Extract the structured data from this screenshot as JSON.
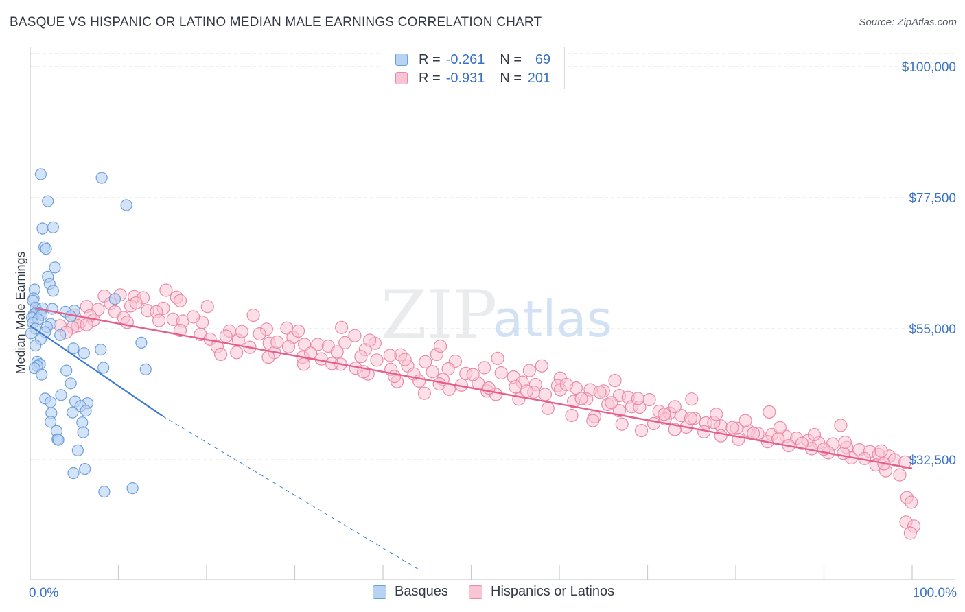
{
  "title": "BASQUE VS HISPANIC OR LATINO MEDIAN MALE EARNINGS CORRELATION CHART",
  "source": "Source: ZipAtlas.com",
  "watermark": {
    "zip": "ZIP",
    "atlas": "atlas"
  },
  "legend_top": {
    "rows": [
      {
        "r_label": "R =",
        "r_value": "-0.261",
        "n_label": "N =",
        "n_value": "69"
      },
      {
        "r_label": "R =",
        "r_value": "-0.931",
        "n_label": "N =",
        "n_value": "201"
      }
    ]
  },
  "legend_bottom": {
    "basques": "Basques",
    "hispanics": "Hispanics or Latinos"
  },
  "colors": {
    "basque_fill": "#b8d2f3",
    "basque_stroke": "#6e9fdb",
    "basque_line": "#3b7bd0",
    "hispanic_fill": "#f9c5d4",
    "hispanic_stroke": "#e98aa8",
    "hispanic_line": "#e45f8c",
    "axis_label": "#3b73c4",
    "grid": "#dfe1e5"
  },
  "chart_data": {
    "type": "scatter",
    "title": "BASQUE VS HISPANIC OR LATINO MEDIAN MALE EARNINGS CORRELATION CHART",
    "xlabel": "",
    "ylabel": "Median Male Earnings",
    "x_tick_labels": [
      "0.0%",
      "100.0%"
    ],
    "y_tick_labels": [
      "$100,000",
      "$77,500",
      "$55,000",
      "$32,500"
    ],
    "y_ticks": [
      100000,
      77500,
      55000,
      32500
    ],
    "xlim": [
      0,
      100
    ],
    "ylim": [
      14000,
      103000
    ],
    "grid": true,
    "series": [
      {
        "name": "Basques",
        "R": -0.261,
        "N": 69,
        "trend": {
          "x": [
            0,
            15
          ],
          "y": [
            55500,
            40000
          ],
          "dashed_to": [
            44,
            13700
          ]
        },
        "points": [
          [
            1.2,
            81.5
          ],
          [
            8.1,
            80.9
          ],
          [
            2.0,
            76.9
          ],
          [
            10.9,
            76.2
          ],
          [
            1.4,
            72.2
          ],
          [
            2.6,
            72.4
          ],
          [
            1.6,
            69.0
          ],
          [
            1.8,
            68.7
          ],
          [
            2.8,
            65.5
          ],
          [
            2.0,
            63.9
          ],
          [
            2.2,
            62.7
          ],
          [
            0.5,
            61.7
          ],
          [
            2.6,
            61.5
          ],
          [
            0.4,
            60.2
          ],
          [
            9.6,
            60.1
          ],
          [
            0.3,
            59.8
          ],
          [
            0.6,
            58.6
          ],
          [
            1.4,
            58.5
          ],
          [
            2.5,
            58.4
          ],
          [
            5.0,
            58.1
          ],
          [
            4.0,
            57.9
          ],
          [
            0.7,
            57.8
          ],
          [
            1.1,
            57.6
          ],
          [
            0.4,
            57.4
          ],
          [
            1.3,
            57.3
          ],
          [
            4.6,
            57.1
          ],
          [
            0.2,
            56.9
          ],
          [
            0.9,
            56.6
          ],
          [
            0.3,
            56.0
          ],
          [
            2.3,
            55.8
          ],
          [
            1.9,
            55.3
          ],
          [
            0.6,
            55.0
          ],
          [
            1.7,
            54.4
          ],
          [
            0.1,
            54.2
          ],
          [
            3.4,
            53.9
          ],
          [
            1.2,
            53.2
          ],
          [
            12.6,
            52.6
          ],
          [
            0.6,
            52.1
          ],
          [
            4.9,
            51.6
          ],
          [
            8.0,
            51.4
          ],
          [
            6.1,
            50.8
          ],
          [
            0.8,
            49.3
          ],
          [
            1.1,
            48.9
          ],
          [
            0.8,
            48.6
          ],
          [
            0.5,
            48.2
          ],
          [
            8.3,
            48.3
          ],
          [
            13.1,
            48.0
          ],
          [
            4.1,
            47.8
          ],
          [
            1.3,
            47.1
          ],
          [
            4.6,
            45.6
          ],
          [
            3.5,
            43.6
          ],
          [
            1.7,
            43.0
          ],
          [
            2.3,
            42.4
          ],
          [
            5.1,
            42.5
          ],
          [
            6.5,
            42.2
          ],
          [
            5.7,
            41.7
          ],
          [
            6.3,
            40.9
          ],
          [
            4.8,
            40.6
          ],
          [
            2.4,
            40.5
          ],
          [
            2.3,
            39.0
          ],
          [
            5.9,
            38.9
          ],
          [
            3.0,
            37.4
          ],
          [
            6.0,
            37.2
          ],
          [
            3.1,
            36.0
          ],
          [
            3.2,
            35.9
          ],
          [
            5.4,
            34.1
          ],
          [
            6.2,
            30.9
          ],
          [
            4.9,
            30.2
          ],
          [
            11.6,
            27.6
          ],
          [
            8.4,
            27.0
          ]
        ]
      },
      {
        "name": "Hispanics or Latinos",
        "R": -0.931,
        "N": 201,
        "trend": {
          "x": [
            0.5,
            100
          ],
          "y": [
            58500,
            31000
          ]
        },
        "points": [
          [
            15.4,
            61.6
          ],
          [
            10.2,
            60.8
          ],
          [
            8.4,
            60.6
          ],
          [
            11.8,
            60.5
          ],
          [
            12.8,
            60.3
          ],
          [
            16.6,
            60.4
          ],
          [
            17.0,
            59.8
          ],
          [
            9.1,
            59.3
          ],
          [
            11.4,
            58.9
          ],
          [
            6.4,
            58.8
          ],
          [
            15.1,
            58.5
          ],
          [
            7.7,
            58.3
          ],
          [
            13.3,
            58.1
          ],
          [
            14.3,
            57.9
          ],
          [
            9.6,
            57.9
          ],
          [
            6.8,
            57.2
          ],
          [
            5.0,
            57.3
          ],
          [
            10.6,
            56.9
          ],
          [
            7.2,
            56.5
          ],
          [
            5.7,
            56.2
          ],
          [
            16.2,
            56.6
          ],
          [
            14.6,
            56.4
          ],
          [
            17.3,
            56.3
          ],
          [
            11.0,
            56.1
          ],
          [
            19.5,
            56.1
          ],
          [
            5.4,
            55.5
          ],
          [
            6.4,
            55.7
          ],
          [
            3.4,
            55.5
          ],
          [
            4.8,
            55.2
          ],
          [
            17.0,
            54.7
          ],
          [
            22.6,
            54.6
          ],
          [
            4.1,
            54.4
          ],
          [
            29.1,
            55.1
          ],
          [
            26.8,
            54.9
          ],
          [
            35.3,
            55.2
          ],
          [
            19.3,
            54.0
          ],
          [
            26.0,
            54.1
          ],
          [
            22.2,
            53.7
          ],
          [
            20.4,
            53.2
          ],
          [
            23.6,
            53.0
          ],
          [
            29.8,
            53.5
          ],
          [
            35.7,
            52.6
          ],
          [
            27.1,
            52.5
          ],
          [
            32.6,
            52.3
          ],
          [
            36.8,
            53.8
          ],
          [
            29.3,
            51.9
          ],
          [
            39.1,
            52.5
          ],
          [
            31.1,
            52.3
          ],
          [
            33.8,
            52.0
          ],
          [
            21.2,
            51.9
          ],
          [
            24.9,
            51.8
          ],
          [
            38.0,
            51.4
          ],
          [
            34.8,
            51.0
          ],
          [
            27.7,
            50.9
          ],
          [
            42.0,
            50.5
          ],
          [
            21.6,
            50.6
          ],
          [
            23.4,
            50.9
          ],
          [
            30.9,
            50.1
          ],
          [
            37.5,
            50.2
          ],
          [
            40.8,
            50.4
          ],
          [
            46.1,
            50.6
          ],
          [
            27.0,
            50.1
          ],
          [
            33.0,
            49.8
          ],
          [
            39.3,
            49.6
          ],
          [
            44.8,
            49.3
          ],
          [
            48.2,
            49.4
          ],
          [
            35.2,
            48.9
          ],
          [
            31.0,
            48.9
          ],
          [
            36.9,
            48.2
          ],
          [
            42.8,
            48.6
          ],
          [
            51.5,
            48.3
          ],
          [
            47.4,
            48.1
          ],
          [
            40.9,
            48.0
          ],
          [
            45.6,
            47.6
          ],
          [
            49.4,
            47.3
          ],
          [
            38.3,
            47.2
          ],
          [
            43.5,
            47.2
          ],
          [
            53.4,
            47.4
          ],
          [
            54.8,
            46.7
          ],
          [
            60.1,
            46.5
          ],
          [
            46.8,
            46.3
          ],
          [
            41.6,
            45.9
          ],
          [
            55.8,
            45.8
          ],
          [
            50.8,
            45.6
          ],
          [
            46.4,
            45.5
          ],
          [
            57.3,
            45.4
          ],
          [
            59.8,
            45.2
          ],
          [
            55.0,
            45.0
          ],
          [
            61.9,
            44.8
          ],
          [
            47.5,
            44.6
          ],
          [
            60.1,
            44.5
          ],
          [
            63.5,
            44.5
          ],
          [
            65.0,
            44.3
          ],
          [
            51.8,
            44.3
          ],
          [
            57.1,
            44.1
          ],
          [
            44.7,
            43.9
          ],
          [
            52.8,
            43.7
          ],
          [
            66.8,
            43.5
          ],
          [
            67.8,
            43.2
          ],
          [
            55.4,
            42.9
          ],
          [
            63.1,
            42.9
          ],
          [
            70.2,
            42.8
          ],
          [
            61.6,
            42.5
          ],
          [
            65.5,
            42.0
          ],
          [
            68.2,
            41.6
          ],
          [
            58.7,
            41.3
          ],
          [
            66.8,
            40.9
          ],
          [
            71.3,
            40.8
          ],
          [
            72.5,
            40.5
          ],
          [
            73.8,
            40.1
          ],
          [
            64.0,
            39.9
          ],
          [
            61.4,
            40.1
          ],
          [
            75.3,
            39.6
          ],
          [
            72.0,
            39.5
          ],
          [
            63.8,
            39.2
          ],
          [
            76.6,
            38.8
          ],
          [
            70.7,
            38.7
          ],
          [
            67.1,
            38.6
          ],
          [
            78.3,
            38.3
          ],
          [
            74.4,
            38.1
          ],
          [
            80.1,
            37.9
          ],
          [
            73.1,
            37.7
          ],
          [
            69.3,
            37.5
          ],
          [
            81.5,
            37.4
          ],
          [
            76.4,
            37.3
          ],
          [
            82.5,
            37.0
          ],
          [
            84.1,
            36.8
          ],
          [
            78.3,
            36.6
          ],
          [
            85.7,
            36.5
          ],
          [
            86.9,
            36.2
          ],
          [
            80.3,
            36.0
          ],
          [
            88.2,
            35.8
          ],
          [
            83.6,
            35.6
          ],
          [
            89.4,
            35.4
          ],
          [
            91.0,
            35.2
          ],
          [
            86.0,
            34.9
          ],
          [
            92.6,
            34.6
          ],
          [
            88.6,
            34.4
          ],
          [
            94.0,
            34.2
          ],
          [
            95.2,
            33.9
          ],
          [
            90.5,
            33.7
          ],
          [
            96.2,
            33.4
          ],
          [
            97.4,
            33.1
          ],
          [
            93.1,
            32.8
          ],
          [
            98.0,
            32.5
          ],
          [
            99.2,
            32.1
          ],
          [
            95.9,
            31.6
          ],
          [
            97.0,
            30.6
          ],
          [
            98.6,
            29.9
          ],
          [
            99.4,
            26.0
          ],
          [
            99.9,
            25.2
          ],
          [
            99.3,
            21.8
          ],
          [
            100.2,
            21.1
          ],
          [
            99.8,
            19.9
          ],
          [
            12.0,
            59.4
          ],
          [
            18.5,
            57.0
          ],
          [
            24.0,
            54.5
          ],
          [
            28.0,
            52.7
          ],
          [
            31.8,
            50.8
          ],
          [
            34.2,
            49.0
          ],
          [
            37.8,
            47.6
          ],
          [
            41.3,
            46.8
          ],
          [
            44.1,
            46.0
          ],
          [
            48.9,
            45.3
          ],
          [
            52.0,
            44.8
          ],
          [
            56.3,
            44.3
          ],
          [
            58.4,
            43.7
          ],
          [
            62.5,
            43.0
          ],
          [
            65.9,
            42.3
          ],
          [
            69.1,
            41.5
          ],
          [
            71.9,
            40.3
          ],
          [
            74.9,
            39.6
          ],
          [
            77.5,
            38.9
          ],
          [
            79.6,
            38.0
          ],
          [
            82.0,
            37.0
          ],
          [
            84.8,
            36.1
          ],
          [
            87.5,
            35.3
          ],
          [
            90.0,
            34.3
          ],
          [
            92.2,
            33.6
          ],
          [
            94.6,
            32.7
          ],
          [
            96.8,
            31.8
          ],
          [
            56.6,
            47.8
          ],
          [
            42.5,
            49.7
          ],
          [
            38.5,
            53.0
          ],
          [
            30.4,
            54.6
          ],
          [
            25.3,
            57.3
          ],
          [
            20.1,
            58.8
          ],
          [
            50.2,
            47.1
          ],
          [
            60.8,
            45.4
          ],
          [
            64.6,
            44.1
          ],
          [
            68.9,
            43.0
          ],
          [
            73.1,
            41.6
          ],
          [
            77.8,
            40.3
          ],
          [
            81.1,
            39.2
          ],
          [
            85.0,
            38.0
          ],
          [
            88.9,
            36.8
          ],
          [
            92.4,
            35.5
          ],
          [
            96.5,
            34.0
          ],
          [
            46.5,
            52.0
          ],
          [
            53.0,
            49.9
          ],
          [
            58.0,
            48.6
          ],
          [
            66.3,
            46.1
          ],
          [
            75.0,
            42.9
          ],
          [
            83.8,
            40.7
          ],
          [
            91.9,
            38.4
          ]
        ]
      }
    ]
  }
}
